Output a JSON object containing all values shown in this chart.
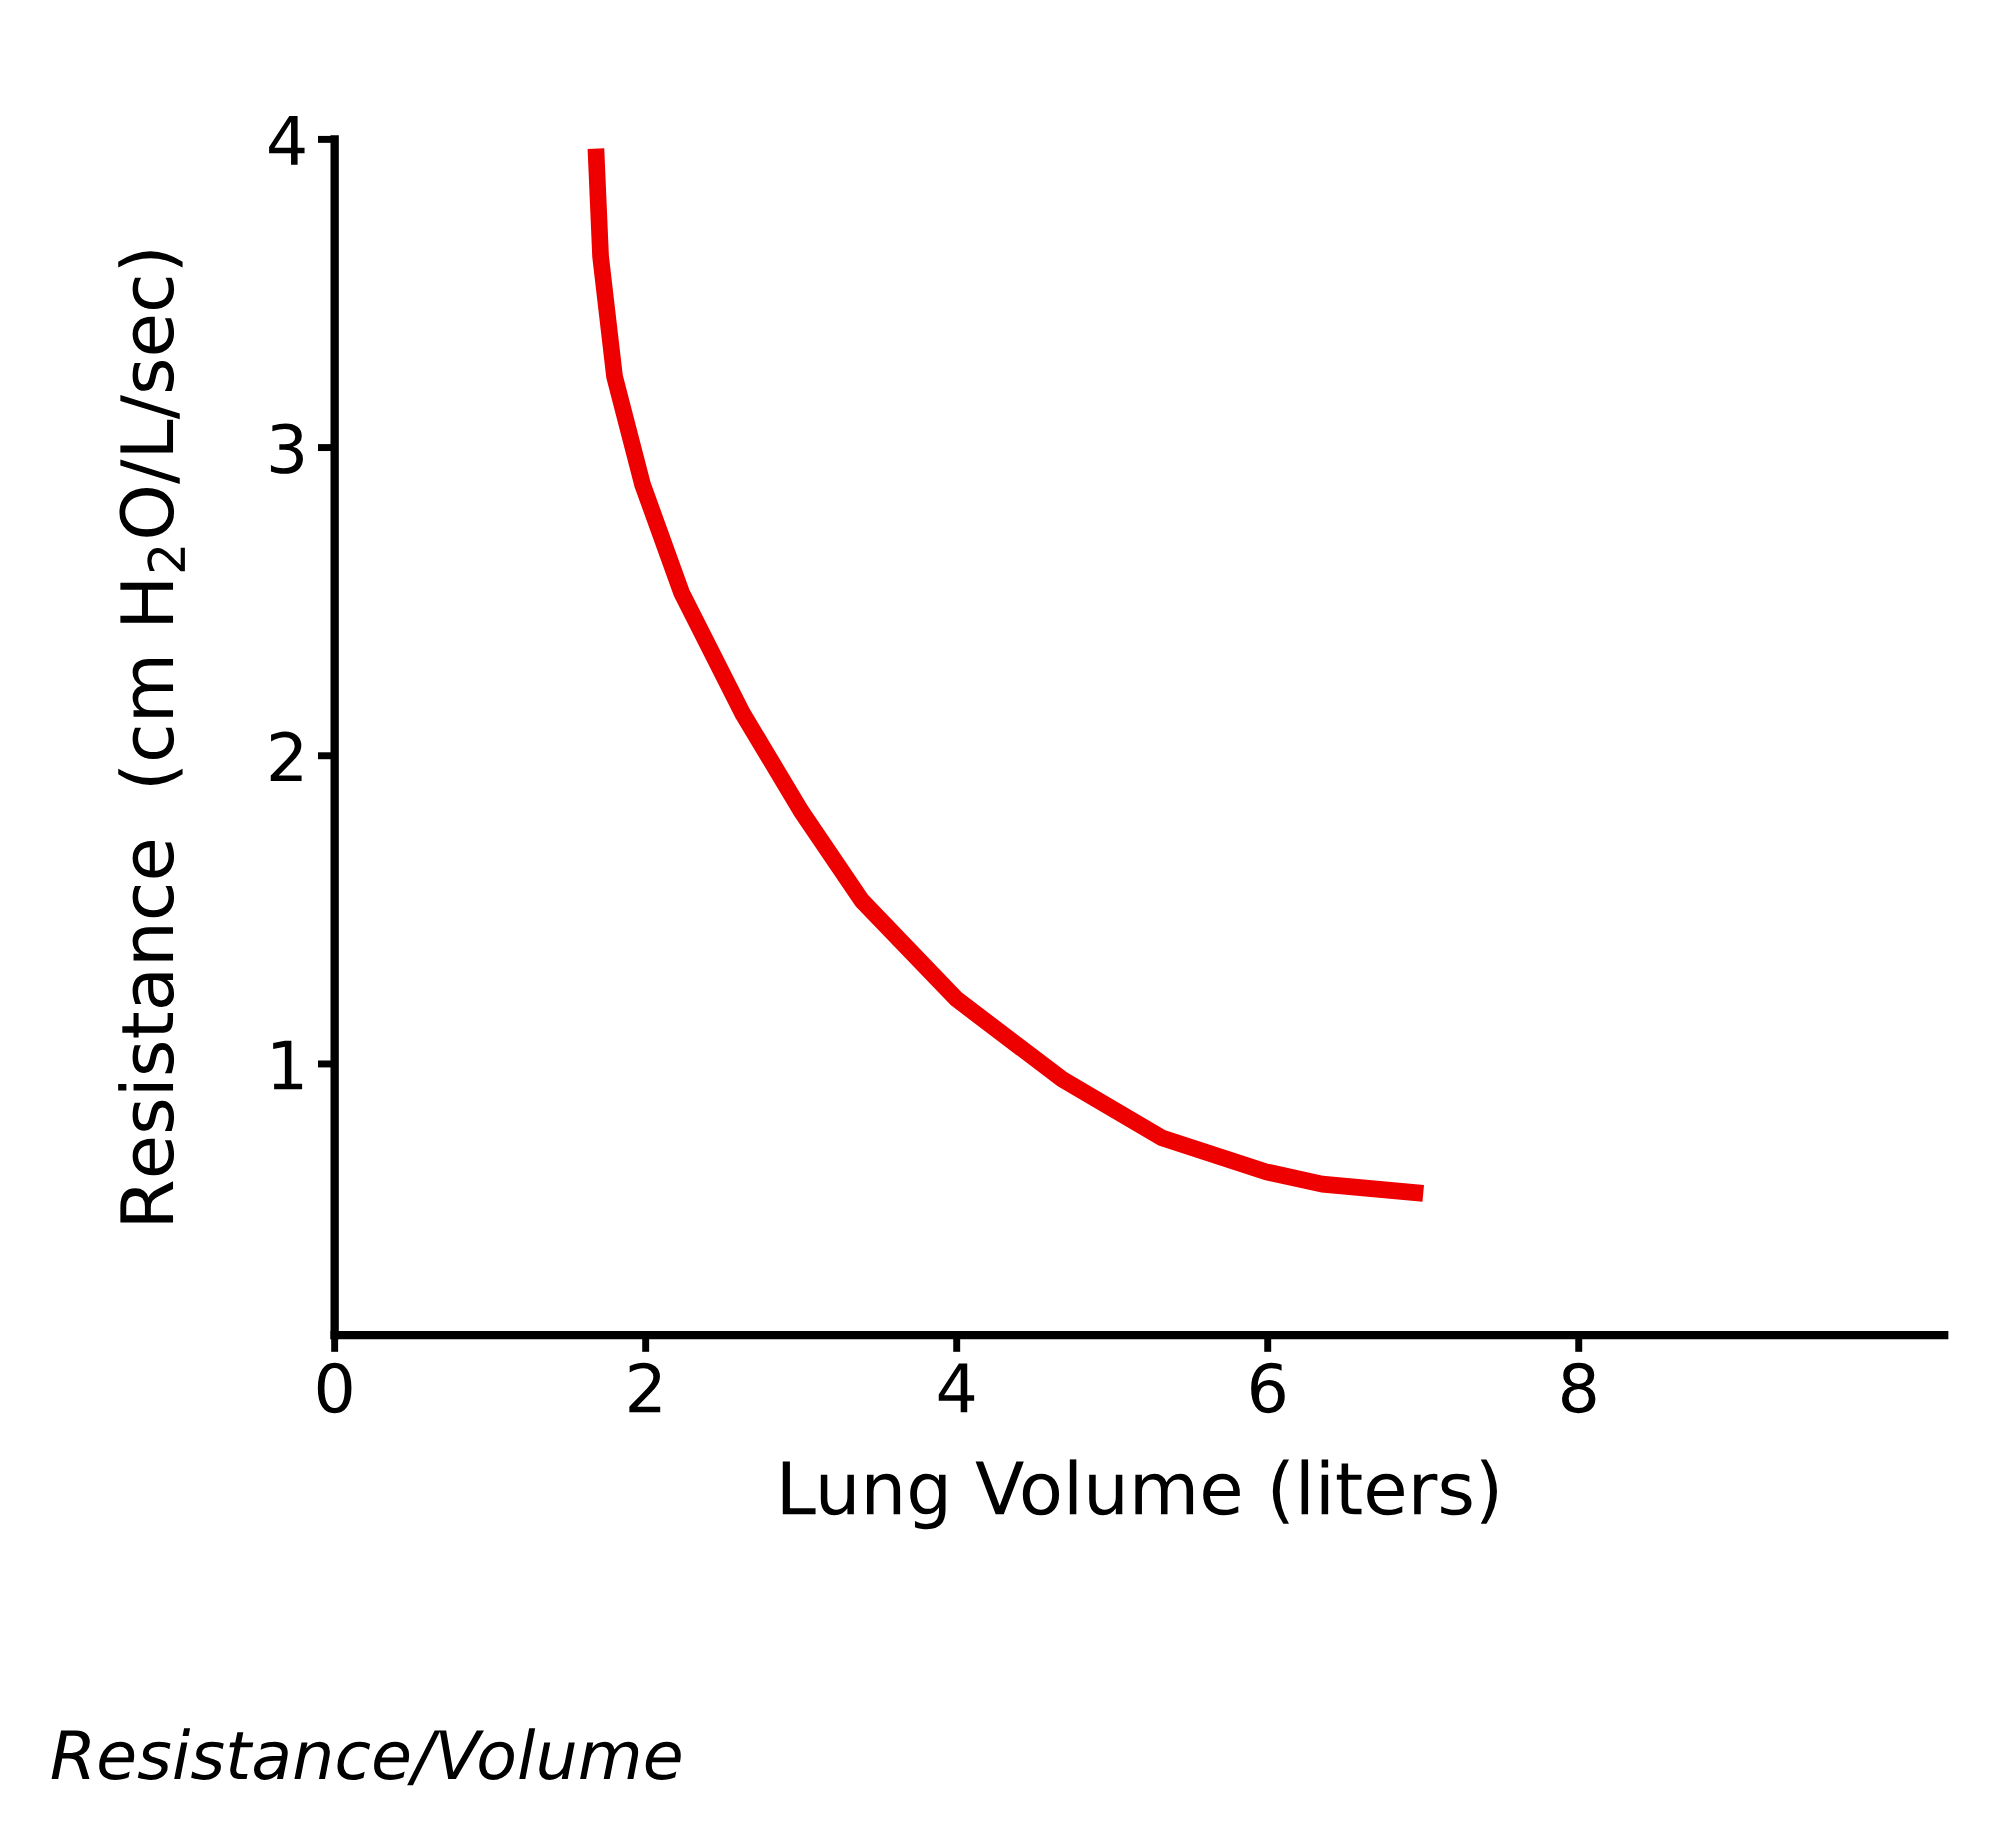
{
  "chart_data": {
    "type": "line",
    "xlabel": "Lung Volume (liters)",
    "ylabel": "Resistance  (cm H$_{2}$O/L/sec)",
    "x": [
      1.68,
      1.71,
      1.8,
      1.98,
      2.23,
      2.62,
      3.0,
      3.39,
      4.0,
      4.68,
      5.32,
      5.99,
      6.35,
      7.0
    ],
    "series": [
      {
        "color": "#ee0000",
        "values": [
          3.97,
          3.62,
          3.23,
          2.88,
          2.53,
          2.14,
          1.82,
          1.53,
          1.21,
          0.95,
          0.76,
          0.65,
          0.61,
          0.58
        ]
      }
    ],
    "xlim": [
      0,
      10.35
    ],
    "ylim": [
      0.12,
      4
    ],
    "xticks": [
      0,
      2,
      4,
      6,
      8
    ],
    "yticks": [
      1,
      2,
      3,
      4
    ],
    "grid": false,
    "legend": false,
    "marker": "none",
    "line_style": "solid",
    "annotations": [
      "Resistance/Volume"
    ]
  }
}
